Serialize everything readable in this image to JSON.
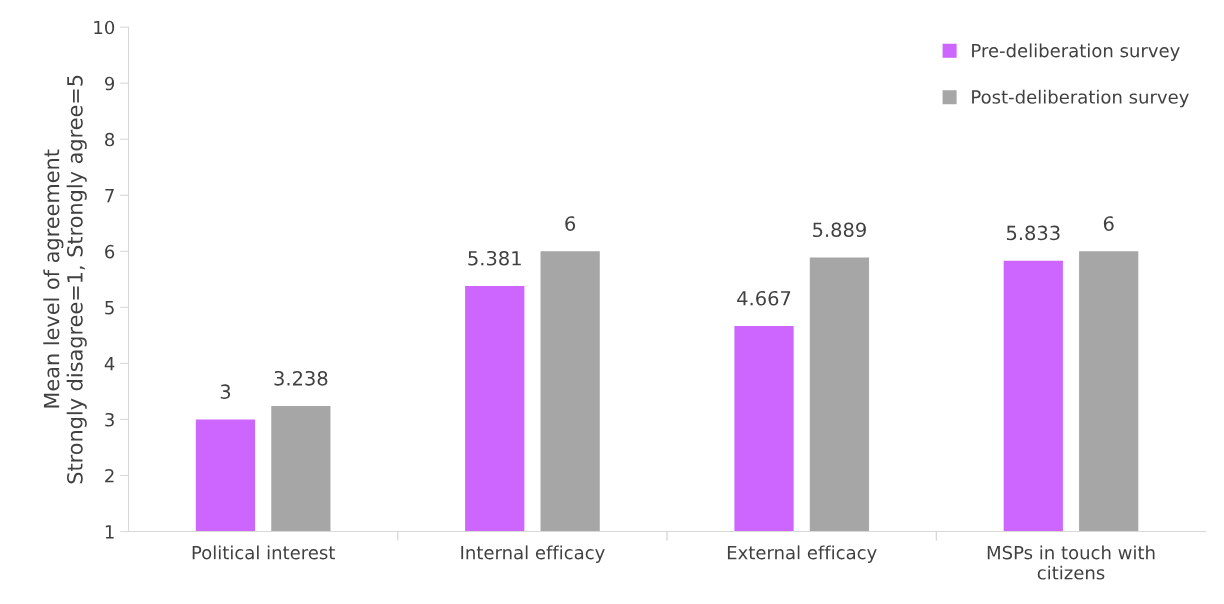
{
  "chart_data": {
    "type": "bar",
    "ylabel": "Mean level of agreement\nStrongly disagree=1, Strongly agree=5",
    "categories": [
      "Political interest",
      "Internal efficacy",
      "External efficacy",
      "MSPs in touch with citizens"
    ],
    "series": [
      {
        "name": "Pre-deliberation survey",
        "color": "#cc66ff",
        "values": [
          3,
          5.381,
          4.667,
          5.833
        ]
      },
      {
        "name": "Post-deliberation survey",
        "color": "#a6a6a6",
        "values": [
          3.238,
          6,
          5.889,
          6
        ]
      }
    ],
    "ylim": [
      1,
      10
    ],
    "yticks": [
      1,
      2,
      3,
      4,
      5,
      6,
      7,
      8,
      9,
      10
    ],
    "grid": false,
    "legend": "top right",
    "data_labels": true
  }
}
